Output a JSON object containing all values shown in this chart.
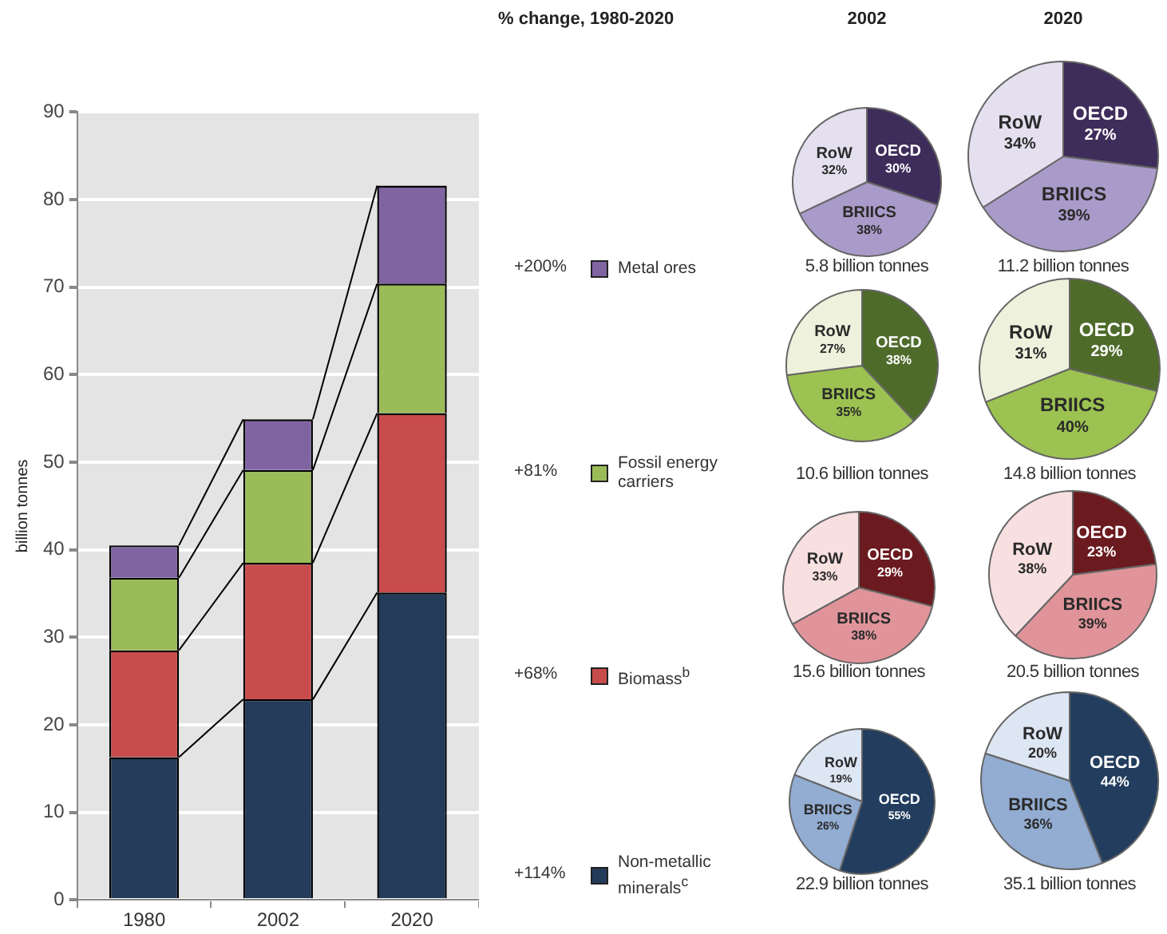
{
  "chart_data": [
    {
      "type": "bar",
      "stacked": true,
      "categories": [
        "1980",
        "2002",
        "2020"
      ],
      "ylabel": "billion tonnes",
      "ylim": [
        0,
        90
      ],
      "yticks": [
        0,
        10,
        20,
        30,
        40,
        50,
        60,
        70,
        80,
        90
      ],
      "grid": "y",
      "legend": "right",
      "legend_title": "% change, 1980-2020",
      "annotations": [
        "+200%",
        "+81%",
        "+68%",
        "+114%"
      ],
      "series": [
        {
          "name": "Non-metallic minerals$^{c}$",
          "color": "#243b5a",
          "values": [
            16.3,
            22.9,
            35.1
          ]
        },
        {
          "name": "Biomass$^{b}$",
          "color": "#c84c4c",
          "values": [
            12.2,
            15.6,
            20.5
          ]
        },
        {
          "name": "Fossil energy carriers",
          "color": "#9bbb59",
          "values": [
            8.3,
            10.6,
            14.8
          ]
        },
        {
          "name": "Metal ores",
          "color": "#8064a2",
          "values": [
            3.7,
            5.8,
            11.2
          ]
        }
      ]
    },
    {
      "type": "pie",
      "title": "2002",
      "categories": [
        "OECD",
        "BRIICS",
        "RoW"
      ],
      "values": [
        30,
        38,
        32
      ],
      "value_labels": [
        "30%",
        "38%",
        "32%"
      ],
      "colors": [
        "#3e2c5a",
        "#a99bc9",
        "#e5e0ef"
      ],
      "annotations": [
        "5.8 billion tonnes"
      ]
    },
    {
      "type": "pie",
      "title": "2020",
      "categories": [
        "OECD",
        "BRIICS",
        "RoW"
      ],
      "values": [
        27,
        39,
        34
      ],
      "value_labels": [
        "27%",
        "39%",
        "34%"
      ],
      "colors": [
        "#3e2c5a",
        "#a99bc9",
        "#e5e0ef"
      ],
      "annotations": [
        "11.2 billion tonnes"
      ]
    },
    {
      "type": "pie",
      "categories": [
        "OECD",
        "BRIICS",
        "RoW"
      ],
      "values": [
        38,
        35,
        27
      ],
      "value_labels": [
        "38%",
        "35%",
        "27%"
      ],
      "colors": [
        "#4f6b2a",
        "#9cc251",
        "#eef2dc"
      ],
      "annotations": [
        "10.6 billion tonnes"
      ]
    },
    {
      "type": "pie",
      "categories": [
        "OECD",
        "BRIICS",
        "RoW"
      ],
      "values": [
        29,
        40,
        31
      ],
      "value_labels": [
        "29%",
        "40%",
        "31%"
      ],
      "colors": [
        "#4f6b2a",
        "#9cc251",
        "#eef2dc"
      ],
      "annotations": [
        "14.8 billion tonnes"
      ]
    },
    {
      "type": "pie",
      "categories": [
        "OECD",
        "BRIICS",
        "RoW"
      ],
      "values": [
        29,
        38,
        33
      ],
      "value_labels": [
        "29%",
        "38%",
        "33%"
      ],
      "colors": [
        "#6b1a1f",
        "#e0949a",
        "#f8dfe0"
      ],
      "annotations": [
        "15.6 billion tonnes"
      ]
    },
    {
      "type": "pie",
      "categories": [
        "OECD",
        "BRIICS",
        "RoW"
      ],
      "values": [
        23,
        39,
        38
      ],
      "value_labels": [
        "23%",
        "39%",
        "38%"
      ],
      "colors": [
        "#6b1a1f",
        "#e0949a",
        "#f8dfe0"
      ],
      "annotations": [
        "20.5 billion tonnes"
      ]
    },
    {
      "type": "pie",
      "categories": [
        "OECD",
        "BRIICS",
        "RoW"
      ],
      "values": [
        55,
        26,
        19
      ],
      "value_labels": [
        "55%",
        "26%",
        "19%"
      ],
      "colors": [
        "#233d5e",
        "#92acd2",
        "#dde6f3"
      ],
      "annotations": [
        "22.9 billion tonnes"
      ]
    },
    {
      "type": "pie",
      "categories": [
        "OECD",
        "BRIICS",
        "RoW"
      ],
      "values": [
        44,
        36,
        20
      ],
      "value_labels": [
        "44%",
        "36%",
        "20%"
      ],
      "colors": [
        "#233d5e",
        "#92acd2",
        "#dde6f3"
      ],
      "annotations": [
        "35.1 billion tonnes"
      ]
    }
  ]
}
